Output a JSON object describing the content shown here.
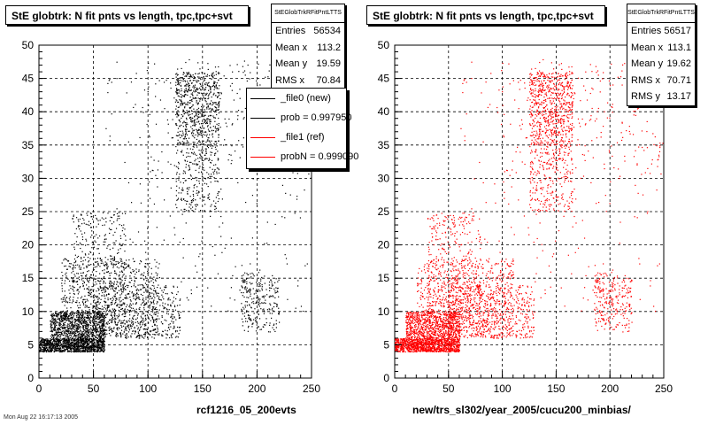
{
  "panels": [
    {
      "title": "StE globtrk: N fit pnts vs length, tpc,tpc+svt",
      "stats": {
        "name": "StEGlobTrkRFitPntLTTS",
        "rows": [
          {
            "label": "Entries",
            "value": "56534"
          },
          {
            "label": "Mean x",
            "value": "113.2"
          },
          {
            "label": "Mean y",
            "value": "19.59"
          },
          {
            "label": "RMS x",
            "value": "70.84"
          }
        ]
      },
      "legend": [
        {
          "label": "_file0 (new)",
          "color": "#000000"
        },
        {
          "label": "prob = 0.997950",
          "color": "#000000"
        },
        {
          "label": "_file1 (ref)",
          "color": "#ff0000"
        },
        {
          "label": "probN = 0.999090",
          "color": "#ff0000"
        }
      ],
      "footer": "rcf1216_05_200evts"
    },
    {
      "title": "StE globtrk: N fit pnts vs length, tpc,tpc+svt",
      "stats": {
        "name": "StEGlobTrkRFitPntLTTS",
        "rows": [
          {
            "label": "Entries",
            "value": "56517"
          },
          {
            "label": "Mean x",
            "value": "113.1"
          },
          {
            "label": "Mean y",
            "value": "19.62"
          },
          {
            "label": "RMS x",
            "value": "70.71"
          },
          {
            "label": "RMS y",
            "value": "13.17"
          }
        ]
      },
      "footer": "new/trs_sl302/year_2005/cucu200_minbias/"
    }
  ],
  "date_text": "Mon Aug 22 16:17:13 2005",
  "chart_data": [
    {
      "type": "scatter",
      "title": "StE globtrk: N fit pnts vs length, tpc,tpc+svt",
      "color": "#000000",
      "xlim": [
        0,
        250
      ],
      "ylim": [
        0,
        50
      ],
      "xticks": [
        0,
        50,
        100,
        150,
        200,
        250
      ],
      "yticks": [
        0,
        5,
        10,
        15,
        20,
        25,
        30,
        35,
        40,
        45,
        50
      ],
      "grid": true,
      "entries": 56534,
      "density_regions": [
        {
          "x": [
            0,
            60
          ],
          "y": [
            4,
            6
          ],
          "weight": 14
        },
        {
          "x": [
            10,
            60
          ],
          "y": [
            6,
            10
          ],
          "weight": 10
        },
        {
          "x": [
            20,
            110
          ],
          "y": [
            6,
            18
          ],
          "weight": 9
        },
        {
          "x": [
            30,
            80
          ],
          "y": [
            10,
            25
          ],
          "weight": 4
        },
        {
          "x": [
            50,
            130
          ],
          "y": [
            6,
            14
          ],
          "weight": 6
        },
        {
          "x": [
            125,
            165
          ],
          "y": [
            35,
            46
          ],
          "weight": 8
        },
        {
          "x": [
            125,
            165
          ],
          "y": [
            25,
            35
          ],
          "weight": 3
        },
        {
          "x": [
            60,
            250
          ],
          "y": [
            10,
            48
          ],
          "weight": 3
        },
        {
          "x": [
            185,
            220
          ],
          "y": [
            7,
            16
          ],
          "weight": 3
        },
        {
          "x": [
            100,
            250
          ],
          "y": [
            30,
            48
          ],
          "weight": 2
        }
      ]
    },
    {
      "type": "scatter",
      "title": "StE globtrk: N fit pnts vs length, tpc,tpc+svt",
      "color": "#ff0000",
      "xlim": [
        0,
        250
      ],
      "ylim": [
        0,
        50
      ],
      "xticks": [
        0,
        50,
        100,
        150,
        200,
        250
      ],
      "yticks": [
        0,
        5,
        10,
        15,
        20,
        25,
        30,
        35,
        40,
        45,
        50
      ],
      "grid": true,
      "entries": 56517,
      "density_regions": [
        {
          "x": [
            0,
            60
          ],
          "y": [
            4,
            6
          ],
          "weight": 14
        },
        {
          "x": [
            10,
            60
          ],
          "y": [
            6,
            10
          ],
          "weight": 10
        },
        {
          "x": [
            20,
            110
          ],
          "y": [
            6,
            18
          ],
          "weight": 9
        },
        {
          "x": [
            30,
            80
          ],
          "y": [
            10,
            25
          ],
          "weight": 4
        },
        {
          "x": [
            50,
            130
          ],
          "y": [
            6,
            14
          ],
          "weight": 6
        },
        {
          "x": [
            125,
            165
          ],
          "y": [
            35,
            46
          ],
          "weight": 8
        },
        {
          "x": [
            125,
            165
          ],
          "y": [
            25,
            35
          ],
          "weight": 3
        },
        {
          "x": [
            60,
            250
          ],
          "y": [
            10,
            48
          ],
          "weight": 3
        },
        {
          "x": [
            185,
            220
          ],
          "y": [
            7,
            16
          ],
          "weight": 3
        },
        {
          "x": [
            100,
            250
          ],
          "y": [
            30,
            48
          ],
          "weight": 2
        }
      ]
    }
  ]
}
